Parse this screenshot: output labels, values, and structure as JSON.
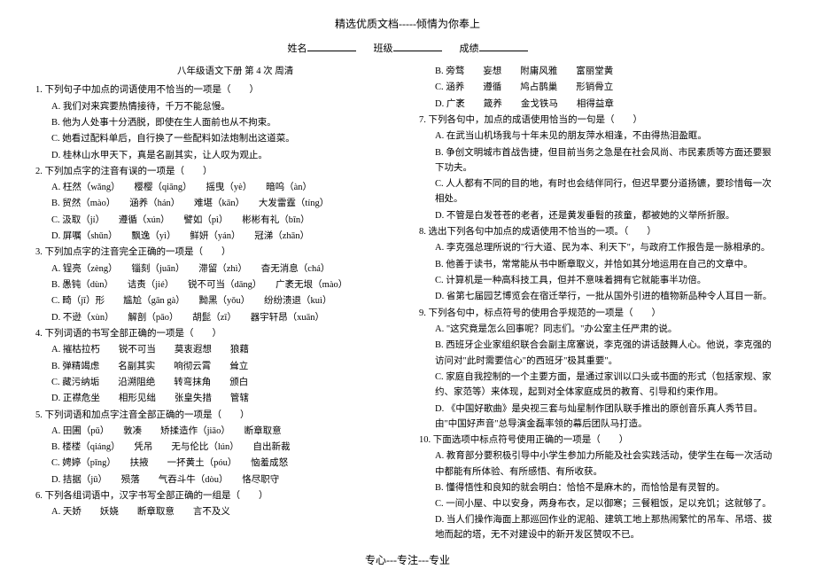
{
  "header": "精选优质文档-----倾情为你奉上",
  "info": {
    "name_label": "姓名",
    "class_label": "班级",
    "score_label": "成绩"
  },
  "subtitle": "八年级语文下册 第 4 次 周清",
  "footer": "专心---专注---专业",
  "left": {
    "q1": {
      "stem": "1. 下列句子中加点的词语使用不恰当的一项是（　　）",
      "a": "A. 我们对来宾要热情接待，千万不能怠慢。",
      "b": "B. 他为人处事十分洒脱，即使在生人面前也从不拘束。",
      "c": "C. 她看过配料单后，自行换了一些配料如法炮制出这道菜。",
      "d": "D. 桂林山水甲天下，真是名副其实，让人叹为观止。"
    },
    "q2": {
      "stem": "2. 下列加点字的注音有误的一项是（　　）",
      "a": "A. 枉然（wǎng）　　樱樱（qiāng）　　摇曳（yè）　　暗呜（àn）",
      "b": "B. 贸然（mào）　　涵养（hán）　　难堪（kān）　　大发雷霆（tíng）",
      "c": "C. 汲取（jí）　　遵循（xún）　　譬如（pì）　　彬彬有礼（bīn）",
      "d": "D. 屏嘱（shǔn）　　飘逸（yì）　　鲜妍（yán）　　冠涕（zhān）"
    },
    "q3": {
      "stem": "3. 下列加点字的注音完全正确的一项是（　　）",
      "a": "A. 锃亮（zèng）　　锱刻（juān）　　滞留（zhì）　　杳无消息（chá）",
      "b": "B. 愚钝（dùn）　　诘责（jié）　　锐不可当（dāng）　　广袤无垠（mào）",
      "c": "C. 畸（jī）形　　尴尬（gān gà）　　黝黑（yǒu）　　纷纷溃退（kuì）",
      "d": "D. 不逊（xùn）　　解剖（pāo）　　胡髭（zī）　　器宇轩昂（xuān）"
    },
    "q4": {
      "stem": "4. 下列词语的书写全部正确的一项是（　　）",
      "a": "A. 摧枯拉朽　　锐不可当　　莫衷遐想　　狼藉",
      "b": "B. 弹精竭虑　　名副其实　　响彻云霄　　耸立",
      "c": "C. 藏污纳垢　　沿溯阻绝　　转弯抹角　　颁白",
      "d": "D. 正襟危坐　　相形见绌　　张皇失措　　管辖"
    },
    "q5": {
      "stem": "5. 下列词语和加点字注音全部正确的一项是（　　）",
      "a": "A. 田圃（pǔ）　　敦凑　　矫揉造作（jiāo）　　断章取意",
      "b": "B. 楼楼（qiáng）　　凭吊　　无与伦比（lún）　　自出新裁",
      "c": "C. 娉婷（pīng）　　扶掖　　一抔黄土（póu）　　恼羞成怒",
      "d": "D. 拮据（jū）　　殒落　　气吞斗牛（dòu）　　恪尽职守"
    },
    "q6": {
      "stem": "6. 下列各组词语中，汉字书写全部正确的一组是（　　）",
      "a": "A. 天娇　　妖娆　　断章取意　　言不及义"
    }
  },
  "right": {
    "q6cont": {
      "b": "B. 旁骛　　妄想　　附庸风雅　　富丽堂黄",
      "c": "C. 涵养　　遵循　　鸠占鹊巢　　形销骨立",
      "d": "D. 广袤　　箴养　　金戈铁马　　相得益章"
    },
    "q7": {
      "stem": "7. 下列各句中，加点的成语使用恰当的一句是（　　）",
      "a": "A. 在武当山机场我与十年未见的朋友萍水相逢，不由得热泪盈眶。",
      "b": "B. 争创文明城市首战告捷，但目前当务之急是在社会风尚、市民素质等方面还要狠下功夫。",
      "c": "C. 人人都有不同的目的地，有时也会结伴同行，但迟早要分道扬镳，要珍惜每一次相处。",
      "d": "D. 不管是白发苍苍的老者，还是黄发垂髫的孩童，都被她的义举所折服。"
    },
    "q8": {
      "stem": "8. 选出下列各句中加点的成语使用不恰当的一项。（　　）",
      "a": "A. 李克强总理所说的\"行大道、民为本、利天下\"，与政府工作报告是一脉相承的。",
      "b": "B. 他善于读书，常常能从书中断章取义，并恰如其分地运用在自己的文章中。",
      "c": "C. 计算机是一种高科技工具，但并不意味着拥有它就能事半功倍。",
      "d": "D. 省第七届园艺博览会在宿迁举行，一批从国外引进的植物新品种令人耳目一新。"
    },
    "q9": {
      "stem": "9. 下列各句中，标点符号的使用合乎规范的一项是（　　）",
      "a": "A. \"这究竟是怎么回事呢？同志们。\"办公室主任严肃的说。",
      "b": "B. 西班牙企业家组织联合会副主席塞说，李克强的讲话鼓舞人心。他说，李克强的访问对\"此时需要信心\"的西班牙\"极其重要\"。",
      "c": "C. 家庭自我控制的一个主要方面，是通过家训以口头或书面的形式（包括家规、家约、家范等）来体现，起到对全体家庭成员的教育、引导和约束作用。",
      "d": "D. 《中国好歌曲》是央视三套与灿星制作团队联手推出的原创音乐真人秀节目。由\"中国好声音\"总导演金磊率领的幕后团队马打造。"
    },
    "q10": {
      "stem": "10. 下面选项中标点符号使用正确的一项是（　　）",
      "a": "A. 教育部分要积极引导中小学生参加力所能及社会实践活动，使学生在每一次活动中都能有所体验、有所感悟、有所收获。",
      "b": "B. 懂得悟性和良知的就会明白：恰恰不是麻木的，而恰恰是有灵智的。",
      "c": "C. 一间小屋、中以安身，两身布衣，足以御寒；三餐粗饭，足以充饥；这就够了。D. 当人们操作海面上那巡回作业的泥船、建筑工地上那热闹繁忙的吊车、吊塔、拔地而起的塔，无不对建设中的新开发区赞叹不已。"
    }
  }
}
